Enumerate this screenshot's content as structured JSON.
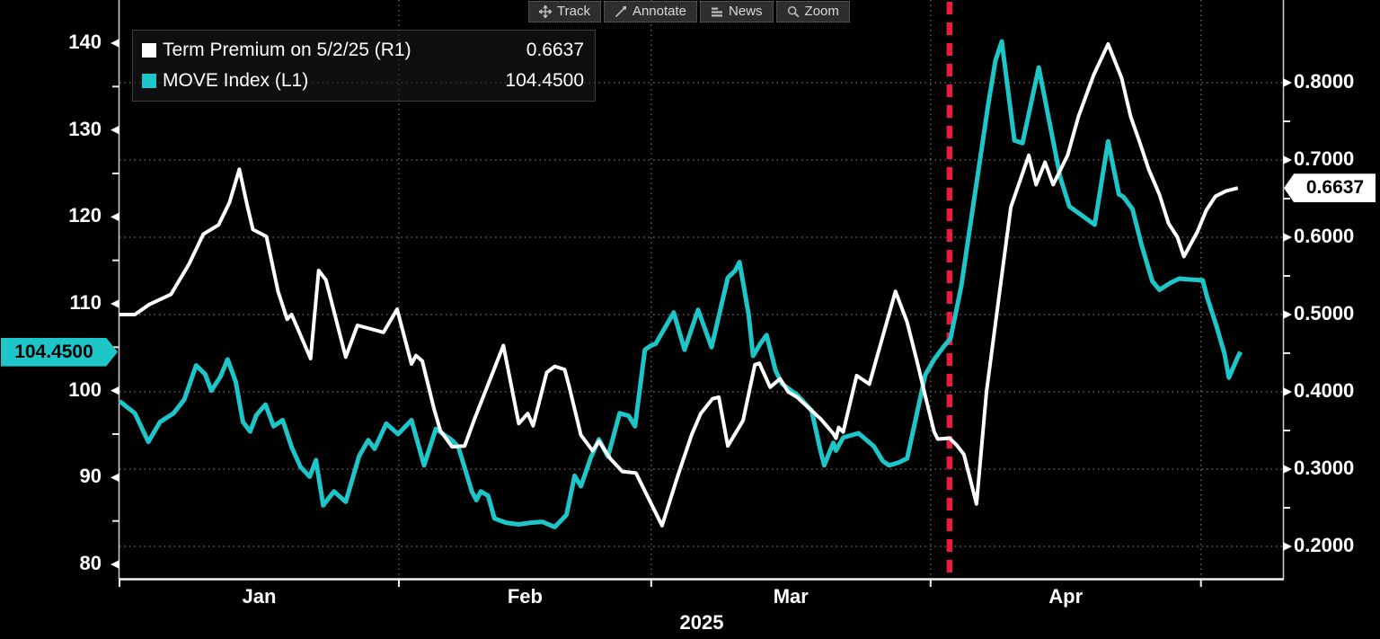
{
  "toolbar": {
    "items": [
      {
        "icon": "track-icon",
        "label": "Track"
      },
      {
        "icon": "annotate-icon",
        "label": "Annotate"
      },
      {
        "icon": "news-icon",
        "label": "News"
      },
      {
        "icon": "zoom-icon",
        "label": "Zoom"
      }
    ]
  },
  "legend": {
    "series": [
      {
        "swatch": "#ffffff",
        "label": "Term Premium on 5/2/25 (R1)",
        "value": "0.6637"
      },
      {
        "swatch": "#1cc6c9",
        "label": "MOVE Index (L1)",
        "value": "104.4500"
      }
    ]
  },
  "axes": {
    "left": {
      "ticks": [
        "140",
        "130",
        "120",
        "110",
        "100",
        "90",
        "80"
      ],
      "badge": "104.4500",
      "badge_color": "#1cc6c9"
    },
    "right": {
      "ticks": [
        "0.8000",
        "0.7000",
        "0.6000",
        "0.5000",
        "0.4000",
        "0.3000",
        "0.2000"
      ],
      "badge": "0.6637",
      "badge_color": "#ffffff"
    },
    "x": {
      "months": [
        "Jan",
        "Feb",
        "Mar",
        "Apr"
      ],
      "year": "2025"
    }
  },
  "chart_data": {
    "type": "line",
    "x_unit": "days since 2025-01-01 (t); plot domain t = 0 .. 129.1",
    "left_ylabel": "MOVE Index",
    "right_ylabel": "Term Premium",
    "left_ylim": [
      80,
      140
    ],
    "right_ylim": [
      0.2,
      0.8
    ],
    "grid": "dotted gray; horizontal at right-axis ticks, vertical at month starts",
    "event_line": {
      "t": 92.1,
      "color": "#ec1a3e",
      "style": "dashed",
      "note": "vertical red dashed marker in early April"
    },
    "x_months": [
      {
        "label": "Jan",
        "t_start": 0,
        "t_mid": 15.5
      },
      {
        "label": "Feb",
        "t_start": 31,
        "t_mid": 45
      },
      {
        "label": "Mar",
        "t_start": 59,
        "t_mid": 74.5
      },
      {
        "label": "Apr",
        "t_start": 90,
        "t_mid": 105
      },
      {
        "label": "",
        "t_start": 120,
        "t_mid": null
      }
    ],
    "series": [
      {
        "name": "Term Premium on 5/2/25 (R1)",
        "axis": "right",
        "color": "#ffffff",
        "last_value": 0.6637,
        "points": [
          [
            0,
            0.5
          ],
          [
            1.7,
            0.5
          ],
          [
            3.3,
            0.513
          ],
          [
            5.7,
            0.526
          ],
          [
            7.7,
            0.565
          ],
          [
            9.3,
            0.604
          ],
          [
            11.0,
            0.616
          ],
          [
            12.2,
            0.645
          ],
          [
            13.3,
            0.688
          ],
          [
            14.2,
            0.64
          ],
          [
            14.8,
            0.61
          ],
          [
            16.3,
            0.601
          ],
          [
            17.6,
            0.53
          ],
          [
            18.6,
            0.494
          ],
          [
            19.1,
            0.5
          ],
          [
            21.2,
            0.443
          ],
          [
            22.1,
            0.557
          ],
          [
            22.9,
            0.545
          ],
          [
            25.1,
            0.445
          ],
          [
            26.4,
            0.486
          ],
          [
            29.3,
            0.477
          ],
          [
            30.8,
            0.507
          ],
          [
            32.4,
            0.436
          ],
          [
            32.9,
            0.447
          ],
          [
            33.6,
            0.44
          ],
          [
            34.9,
            0.378
          ],
          [
            35.6,
            0.35
          ],
          [
            36.9,
            0.329
          ],
          [
            38.3,
            0.33
          ],
          [
            39.4,
            0.365
          ],
          [
            42.6,
            0.46
          ],
          [
            44.3,
            0.359
          ],
          [
            45.3,
            0.372
          ],
          [
            45.9,
            0.356
          ],
          [
            47.4,
            0.425
          ],
          [
            48.3,
            0.433
          ],
          [
            49.4,
            0.429
          ],
          [
            49.9,
            0.407
          ],
          [
            51.2,
            0.344
          ],
          [
            52.5,
            0.324
          ],
          [
            53.2,
            0.336
          ],
          [
            54.5,
            0.313
          ],
          [
            55.8,
            0.297
          ],
          [
            57.3,
            0.295
          ],
          [
            60.2,
            0.227
          ],
          [
            62.0,
            0.293
          ],
          [
            63.5,
            0.345
          ],
          [
            64.5,
            0.372
          ],
          [
            65.8,
            0.391
          ],
          [
            66.5,
            0.393
          ],
          [
            67.5,
            0.33
          ],
          [
            69.2,
            0.363
          ],
          [
            70.5,
            0.435
          ],
          [
            71.0,
            0.437
          ],
          [
            72.2,
            0.406
          ],
          [
            73.3,
            0.417
          ],
          [
            74.2,
            0.4
          ],
          [
            75.2,
            0.393
          ],
          [
            76.5,
            0.379
          ],
          [
            77.8,
            0.365
          ],
          [
            79.2,
            0.346
          ],
          [
            79.5,
            0.34
          ],
          [
            79.8,
            0.354
          ],
          [
            80.3,
            0.348
          ],
          [
            81.8,
            0.421
          ],
          [
            83.2,
            0.41
          ],
          [
            86.1,
            0.53
          ],
          [
            87.4,
            0.49
          ],
          [
            88.7,
            0.43
          ],
          [
            89.4,
            0.395
          ],
          [
            90.4,
            0.348
          ],
          [
            90.8,
            0.339
          ],
          [
            92.1,
            0.34
          ],
          [
            92.9,
            0.331
          ],
          [
            93.7,
            0.319
          ],
          [
            95.1,
            0.255
          ],
          [
            96.2,
            0.4
          ],
          [
            97.5,
            0.515
          ],
          [
            98.9,
            0.639
          ],
          [
            100.9,
            0.706
          ],
          [
            101.7,
            0.668
          ],
          [
            102.7,
            0.697
          ],
          [
            103.6,
            0.668
          ],
          [
            105.2,
            0.706
          ],
          [
            106.4,
            0.756
          ],
          [
            108.1,
            0.81
          ],
          [
            109.7,
            0.85
          ],
          [
            111.2,
            0.806
          ],
          [
            112.2,
            0.756
          ],
          [
            113.2,
            0.723
          ],
          [
            114.2,
            0.688
          ],
          [
            115.4,
            0.655
          ],
          [
            116.4,
            0.618
          ],
          [
            117.4,
            0.6
          ],
          [
            118.1,
            0.575
          ],
          [
            119.6,
            0.607
          ],
          [
            120.6,
            0.635
          ],
          [
            121.6,
            0.653
          ],
          [
            122.8,
            0.66
          ],
          [
            124.1,
            0.6637
          ]
        ]
      },
      {
        "name": "MOVE Index (L1)",
        "axis": "left",
        "color": "#1cc6c9",
        "last_value": 104.45,
        "points": [
          [
            0,
            98.8
          ],
          [
            1.7,
            97.4
          ],
          [
            3.2,
            94.1
          ],
          [
            4.5,
            96.4
          ],
          [
            6.0,
            97.4
          ],
          [
            7.2,
            99.0
          ],
          [
            8.5,
            102.9
          ],
          [
            9.5,
            101.9
          ],
          [
            10.2,
            100.0
          ],
          [
            11.2,
            101.6
          ],
          [
            12.0,
            103.6
          ],
          [
            12.9,
            101.0
          ],
          [
            13.7,
            96.4
          ],
          [
            14.5,
            95.3
          ],
          [
            15.2,
            97.2
          ],
          [
            16.2,
            98.4
          ],
          [
            17.1,
            95.9
          ],
          [
            18.1,
            96.6
          ],
          [
            19.1,
            93.5
          ],
          [
            20.1,
            91.2
          ],
          [
            21.1,
            90.1
          ],
          [
            21.8,
            92.0
          ],
          [
            22.6,
            86.8
          ],
          [
            23.8,
            88.4
          ],
          [
            25.1,
            87.2
          ],
          [
            26.6,
            92.5
          ],
          [
            27.6,
            94.3
          ],
          [
            28.3,
            93.3
          ],
          [
            29.6,
            96.2
          ],
          [
            30.9,
            95.0
          ],
          [
            32.4,
            96.6
          ],
          [
            33.8,
            91.4
          ],
          [
            35.1,
            95.6
          ],
          [
            36.9,
            94.3
          ],
          [
            37.6,
            93.5
          ],
          [
            39.1,
            88.4
          ],
          [
            39.6,
            87.4
          ],
          [
            40.1,
            88.4
          ],
          [
            40.9,
            87.9
          ],
          [
            41.6,
            85.3
          ],
          [
            42.9,
            84.8
          ],
          [
            44.3,
            84.6
          ],
          [
            45.6,
            84.8
          ],
          [
            46.9,
            84.9
          ],
          [
            48.3,
            84.3
          ],
          [
            49.6,
            85.7
          ],
          [
            50.5,
            90.2
          ],
          [
            51.2,
            89.0
          ],
          [
            52.3,
            92.3
          ],
          [
            53.2,
            94.4
          ],
          [
            54.2,
            92.4
          ],
          [
            55.5,
            97.4
          ],
          [
            56.5,
            97.1
          ],
          [
            57.2,
            95.9
          ],
          [
            58.3,
            104.7
          ],
          [
            59.0,
            105.2
          ],
          [
            59.5,
            105.4
          ],
          [
            61.5,
            109.0
          ],
          [
            62.7,
            104.7
          ],
          [
            64.2,
            109.3
          ],
          [
            65.7,
            105.0
          ],
          [
            67.5,
            113.0
          ],
          [
            68.3,
            113.8
          ],
          [
            68.8,
            114.8
          ],
          [
            69.8,
            108.8
          ],
          [
            70.3,
            104.0
          ],
          [
            71.1,
            105.4
          ],
          [
            71.8,
            106.4
          ],
          [
            72.8,
            102.3
          ],
          [
            73.5,
            100.8
          ],
          [
            75.2,
            99.5
          ],
          [
            76.8,
            97.7
          ],
          [
            77.8,
            93.0
          ],
          [
            78.2,
            91.4
          ],
          [
            79.2,
            94.0
          ],
          [
            79.5,
            93.1
          ],
          [
            80.3,
            94.6
          ],
          [
            82.0,
            95.1
          ],
          [
            83.7,
            93.6
          ],
          [
            84.7,
            91.9
          ],
          [
            85.4,
            91.4
          ],
          [
            86.4,
            91.7
          ],
          [
            87.4,
            92.2
          ],
          [
            88.2,
            96.0
          ],
          [
            89.4,
            101.8
          ],
          [
            90.4,
            103.6
          ],
          [
            91.4,
            105.0
          ],
          [
            92.2,
            106.0
          ],
          [
            93.4,
            112.0
          ],
          [
            94.4,
            119.0
          ],
          [
            95.4,
            126.0
          ],
          [
            96.4,
            133.0
          ],
          [
            97.2,
            138.0
          ],
          [
            97.9,
            140.2
          ],
          [
            99.3,
            128.8
          ],
          [
            100.2,
            128.5
          ],
          [
            102.0,
            137.2
          ],
          [
            103.0,
            131.9
          ],
          [
            104.4,
            124.5
          ],
          [
            105.4,
            121.2
          ],
          [
            108.2,
            119.1
          ],
          [
            109.7,
            128.7
          ],
          [
            110.9,
            122.6
          ],
          [
            111.4,
            122.3
          ],
          [
            112.4,
            120.9
          ],
          [
            113.4,
            116.8
          ],
          [
            114.6,
            112.6
          ],
          [
            115.4,
            111.6
          ],
          [
            116.6,
            112.4
          ],
          [
            117.6,
            112.9
          ],
          [
            118.6,
            112.8
          ],
          [
            120.2,
            112.7
          ],
          [
            120.7,
            110.7
          ],
          [
            121.7,
            107.5
          ],
          [
            122.6,
            104.3
          ],
          [
            123.1,
            101.5
          ],
          [
            124.1,
            103.9
          ],
          [
            124.4,
            104.45
          ]
        ]
      }
    ]
  }
}
